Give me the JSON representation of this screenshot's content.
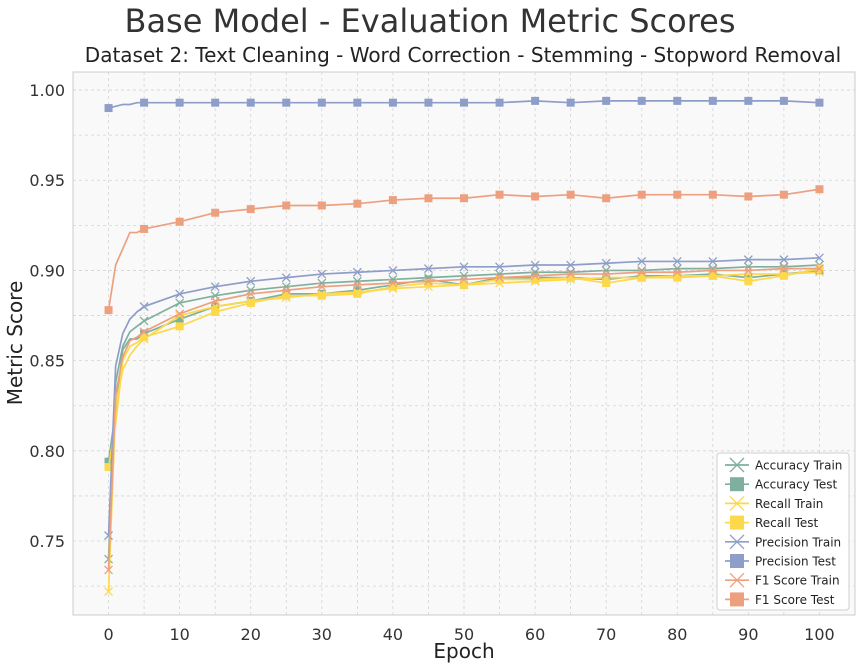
{
  "chart_data": {
    "type": "line",
    "title": "Base Model - Evaluation Metric Scores",
    "subtitle": "Dataset 2: Text Cleaning - Word Correction - Stemming - Stopword Removal",
    "xlabel": "Epoch",
    "ylabel": "Metric Score",
    "xlim": [
      -5,
      105
    ],
    "ylim": [
      0.709,
      1.01
    ],
    "xticks": [
      0,
      10,
      20,
      30,
      40,
      50,
      60,
      70,
      80,
      90,
      100
    ],
    "yticks": [
      0.75,
      0.8,
      0.85,
      0.9,
      0.95,
      1.0
    ],
    "ytick_labels": [
      "0.75",
      "0.80",
      "0.85",
      "0.90",
      "0.95",
      "1.00"
    ],
    "grid": true,
    "legend_position": "bottom-right",
    "marker_every": 5,
    "x": [
      0,
      1,
      2,
      3,
      4,
      5,
      10,
      15,
      20,
      25,
      30,
      35,
      40,
      45,
      50,
      55,
      60,
      65,
      70,
      75,
      80,
      85,
      90,
      95,
      100
    ],
    "series": [
      {
        "name": "Accuracy Train",
        "color": "#7fb09d",
        "marker": "x",
        "values": [
          0.74,
          0.838,
          0.858,
          0.866,
          0.869,
          0.872,
          0.882,
          0.886,
          0.889,
          0.891,
          0.893,
          0.894,
          0.895,
          0.896,
          0.897,
          0.898,
          0.899,
          0.899,
          0.9,
          0.9,
          0.901,
          0.901,
          0.902,
          0.902,
          0.903
        ]
      },
      {
        "name": "Accuracy Test",
        "color": "#7fb09d",
        "marker": "s",
        "values": [
          0.794,
          0.822,
          0.856,
          0.862,
          0.862,
          0.865,
          0.873,
          0.88,
          0.883,
          0.887,
          0.887,
          0.889,
          0.892,
          0.895,
          0.892,
          0.896,
          0.896,
          0.896,
          0.895,
          0.897,
          0.897,
          0.898,
          0.896,
          0.898,
          0.9
        ]
      },
      {
        "name": "Recall Train",
        "color": "#fcd84a",
        "marker": "x",
        "values": [
          0.722,
          0.825,
          0.845,
          0.853,
          0.858,
          0.862,
          0.875,
          0.88,
          0.883,
          0.885,
          0.887,
          0.888,
          0.89,
          0.891,
          0.892,
          0.893,
          0.894,
          0.895,
          0.896,
          0.896,
          0.897,
          0.897,
          0.898,
          0.898,
          0.899
        ]
      },
      {
        "name": "Recall Test",
        "color": "#fcd84a",
        "marker": "s",
        "values": [
          0.791,
          0.815,
          0.85,
          0.858,
          0.86,
          0.863,
          0.869,
          0.877,
          0.882,
          0.886,
          0.886,
          0.887,
          0.891,
          0.893,
          0.892,
          0.895,
          0.895,
          0.896,
          0.893,
          0.896,
          0.896,
          0.897,
          0.894,
          0.897,
          0.901
        ]
      },
      {
        "name": "Precision Train",
        "color": "#8e9ec9",
        "marker": "x",
        "values": [
          0.753,
          0.847,
          0.865,
          0.873,
          0.877,
          0.88,
          0.887,
          0.891,
          0.894,
          0.896,
          0.898,
          0.899,
          0.9,
          0.901,
          0.902,
          0.902,
          0.903,
          0.903,
          0.904,
          0.905,
          0.905,
          0.905,
          0.906,
          0.906,
          0.907
        ]
      },
      {
        "name": "Precision Test",
        "color": "#8e9ec9",
        "marker": "s",
        "values": [
          0.99,
          0.991,
          0.992,
          0.992,
          0.993,
          0.993,
          0.993,
          0.993,
          0.993,
          0.993,
          0.993,
          0.993,
          0.993,
          0.993,
          0.993,
          0.993,
          0.994,
          0.993,
          0.994,
          0.994,
          0.994,
          0.994,
          0.994,
          0.994,
          0.993
        ]
      },
      {
        "name": "F1 Score Train",
        "color": "#eda080",
        "marker": "x",
        "values": [
          0.734,
          0.831,
          0.852,
          0.861,
          0.863,
          0.866,
          0.876,
          0.883,
          0.887,
          0.889,
          0.891,
          0.892,
          0.893,
          0.894,
          0.895,
          0.896,
          0.897,
          0.898,
          0.898,
          0.899,
          0.899,
          0.9,
          0.9,
          0.901,
          0.901
        ]
      },
      {
        "name": "F1 Score Test",
        "color": "#eda080",
        "marker": "s",
        "values": [
          0.878,
          0.903,
          0.912,
          0.921,
          0.921,
          0.923,
          0.927,
          0.932,
          0.934,
          0.936,
          0.936,
          0.937,
          0.939,
          0.94,
          0.94,
          0.942,
          0.941,
          0.942,
          0.94,
          0.942,
          0.942,
          0.942,
          0.941,
          0.942,
          0.945
        ]
      }
    ]
  }
}
